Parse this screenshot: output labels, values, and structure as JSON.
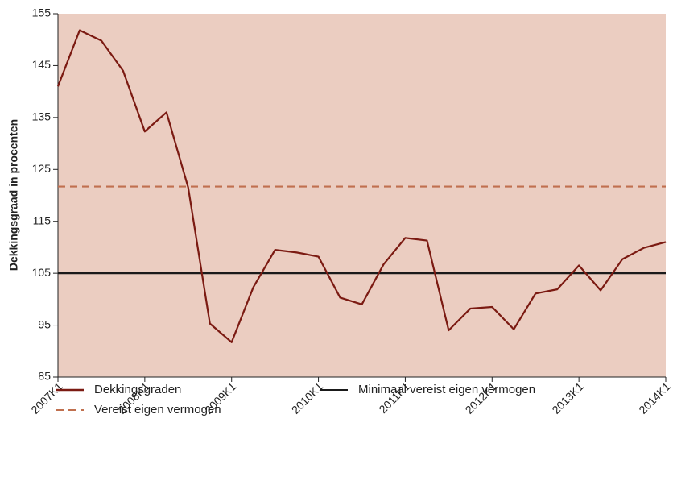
{
  "chart_data": {
    "type": "line",
    "ylabel": "Dekkingsgraad in procenten",
    "categories": [
      "2007K1",
      null,
      null,
      null,
      "2008K1",
      null,
      null,
      null,
      "2009K1",
      null,
      null,
      null,
      "2010K1",
      null,
      null,
      null,
      "2011K1",
      null,
      null,
      null,
      "2012K1",
      null,
      null,
      null,
      "2013K1",
      null,
      null,
      null,
      "2014K1"
    ],
    "series": [
      {
        "name": "Dekkingsgraden",
        "color": "#7b1a12",
        "values": [
          141,
          151.8,
          149.8,
          144,
          132.3,
          136,
          121.5,
          95.3,
          91.7,
          102.3,
          109.5,
          109,
          108.2,
          100.3,
          99,
          106.7,
          111.8,
          111.3,
          94,
          98.2,
          98.5,
          94.2,
          101.1,
          101.9,
          106.5,
          101.7,
          107.7,
          109.9,
          111
        ]
      }
    ],
    "reference_lines": [
      {
        "name": "Minimaal vereist eigen vermogen",
        "value": 105,
        "color": "#1a1a1a",
        "style": "solid"
      },
      {
        "name": "Vereist eigen vermogen",
        "value": 121.7,
        "color": "#c0704f",
        "style": "dashed"
      }
    ],
    "ylim": [
      85,
      155
    ],
    "yticks": [
      85,
      95,
      105,
      115,
      125,
      135,
      145,
      155
    ],
    "background": "#ebcdc1"
  }
}
